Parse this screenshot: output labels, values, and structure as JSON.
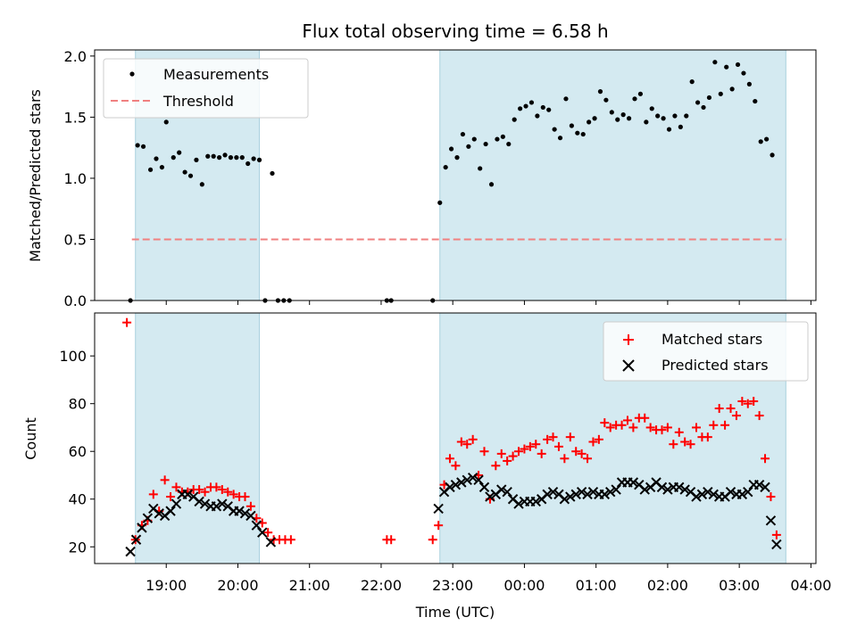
{
  "chart_data": {
    "title": "Flux total observing time = 6.58 h",
    "xlabel": "Time (UTC)",
    "x_ticks": [
      "19:00",
      "20:00",
      "21:00",
      "22:00",
      "23:00",
      "00:00",
      "01:00",
      "02:00",
      "03:00",
      "04:00"
    ],
    "shaded_intervals": [
      [
        18.57,
        20.3
      ],
      [
        22.82,
        27.65
      ]
    ],
    "shade_color": "#d4eaf1",
    "top": {
      "type": "scatter",
      "ylabel": "Matched/Predicted stars",
      "ylim": [
        0,
        2.05
      ],
      "y_ticks": [
        "0.0",
        "0.5",
        "1.0",
        "1.5",
        "2.0"
      ],
      "threshold": {
        "name": "Threshold",
        "value": 0.5,
        "x_range": [
          18.52,
          27.65
        ],
        "color": "#f08080"
      },
      "series": [
        {
          "name": "Measurements",
          "color": "#000000",
          "points": [
            [
              18.5,
              0.0
            ],
            [
              18.6,
              1.27
            ],
            [
              18.68,
              1.26
            ],
            [
              18.78,
              1.07
            ],
            [
              18.86,
              1.16
            ],
            [
              18.94,
              1.09
            ],
            [
              19.0,
              1.46
            ],
            [
              19.1,
              1.17
            ],
            [
              19.18,
              1.21
            ],
            [
              19.26,
              1.05
            ],
            [
              19.34,
              1.02
            ],
            [
              19.42,
              1.15
            ],
            [
              19.5,
              0.95
            ],
            [
              19.58,
              1.18
            ],
            [
              19.66,
              1.18
            ],
            [
              19.74,
              1.17
            ],
            [
              19.82,
              1.19
            ],
            [
              19.9,
              1.17
            ],
            [
              19.98,
              1.17
            ],
            [
              20.06,
              1.17
            ],
            [
              20.14,
              1.12
            ],
            [
              20.22,
              1.16
            ],
            [
              20.3,
              1.15
            ],
            [
              20.38,
              0.0
            ],
            [
              20.48,
              1.04
            ],
            [
              20.56,
              0.0
            ],
            [
              20.64,
              0.0
            ],
            [
              20.72,
              0.0
            ],
            [
              22.08,
              0.0
            ],
            [
              22.14,
              0.0
            ],
            [
              22.72,
              0.0
            ],
            [
              22.82,
              0.8
            ],
            [
              22.9,
              1.09
            ],
            [
              22.98,
              1.24
            ],
            [
              23.06,
              1.17
            ],
            [
              23.14,
              1.36
            ],
            [
              23.22,
              1.26
            ],
            [
              23.3,
              1.32
            ],
            [
              23.38,
              1.08
            ],
            [
              23.46,
              1.28
            ],
            [
              23.54,
              0.95
            ],
            [
              23.62,
              1.32
            ],
            [
              23.7,
              1.34
            ],
            [
              23.78,
              1.28
            ],
            [
              23.86,
              1.48
            ],
            [
              23.94,
              1.57
            ],
            [
              24.02,
              1.59
            ],
            [
              24.1,
              1.62
            ],
            [
              24.18,
              1.51
            ],
            [
              24.26,
              1.58
            ],
            [
              24.34,
              1.56
            ],
            [
              24.42,
              1.4
            ],
            [
              24.5,
              1.33
            ],
            [
              24.58,
              1.65
            ],
            [
              24.66,
              1.43
            ],
            [
              24.74,
              1.37
            ],
            [
              24.82,
              1.36
            ],
            [
              24.9,
              1.46
            ],
            [
              24.98,
              1.49
            ],
            [
              25.06,
              1.71
            ],
            [
              25.14,
              1.64
            ],
            [
              25.22,
              1.54
            ],
            [
              25.3,
              1.48
            ],
            [
              25.38,
              1.52
            ],
            [
              25.46,
              1.49
            ],
            [
              25.54,
              1.65
            ],
            [
              25.62,
              1.69
            ],
            [
              25.7,
              1.46
            ],
            [
              25.78,
              1.57
            ],
            [
              25.86,
              1.51
            ],
            [
              25.94,
              1.49
            ],
            [
              26.02,
              1.4
            ],
            [
              26.1,
              1.51
            ],
            [
              26.18,
              1.42
            ],
            [
              26.26,
              1.51
            ],
            [
              26.34,
              1.79
            ],
            [
              26.42,
              1.62
            ],
            [
              26.5,
              1.58
            ],
            [
              26.58,
              1.66
            ],
            [
              26.66,
              1.95
            ],
            [
              26.74,
              1.69
            ],
            [
              26.82,
              1.91
            ],
            [
              26.9,
              1.73
            ],
            [
              26.98,
              1.93
            ],
            [
              27.06,
              1.86
            ],
            [
              27.14,
              1.77
            ],
            [
              27.22,
              1.63
            ],
            [
              27.3,
              1.3
            ],
            [
              27.38,
              1.32
            ],
            [
              27.46,
              1.19
            ]
          ]
        }
      ]
    },
    "bottom": {
      "type": "scatter",
      "ylabel": "Count",
      "ylim": [
        13,
        118
      ],
      "y_ticks": [
        "20",
        "40",
        "60",
        "80",
        "100"
      ],
      "series": [
        {
          "name": "Matched stars",
          "marker": "+",
          "color": "#ff0000",
          "points": [
            [
              18.45,
              114
            ],
            [
              18.57,
              23
            ],
            [
              18.66,
              29
            ],
            [
              18.74,
              31
            ],
            [
              18.82,
              42
            ],
            [
              18.9,
              35
            ],
            [
              18.98,
              48
            ],
            [
              19.06,
              41
            ],
            [
              19.14,
              45
            ],
            [
              19.22,
              43
            ],
            [
              19.3,
              43
            ],
            [
              19.38,
              44
            ],
            [
              19.46,
              44
            ],
            [
              19.54,
              43
            ],
            [
              19.62,
              45
            ],
            [
              19.7,
              45
            ],
            [
              19.78,
              44
            ],
            [
              19.86,
              43
            ],
            [
              19.94,
              42
            ],
            [
              20.02,
              41
            ],
            [
              20.1,
              41
            ],
            [
              20.18,
              37
            ],
            [
              20.26,
              32
            ],
            [
              20.34,
              30
            ],
            [
              20.42,
              26
            ],
            [
              20.5,
              23
            ],
            [
              20.58,
              23
            ],
            [
              20.66,
              23
            ],
            [
              20.74,
              23
            ],
            [
              22.08,
              23
            ],
            [
              22.14,
              23
            ],
            [
              22.72,
              23
            ],
            [
              22.8,
              29
            ],
            [
              22.88,
              46
            ],
            [
              22.96,
              57
            ],
            [
              23.04,
              54
            ],
            [
              23.12,
              64
            ],
            [
              23.2,
              63
            ],
            [
              23.28,
              65
            ],
            [
              23.36,
              50
            ],
            [
              23.44,
              60
            ],
            [
              23.52,
              40
            ],
            [
              23.6,
              54
            ],
            [
              23.68,
              59
            ],
            [
              23.76,
              56
            ],
            [
              23.84,
              58
            ],
            [
              23.92,
              60
            ],
            [
              24.0,
              61
            ],
            [
              24.08,
              62
            ],
            [
              24.16,
              63
            ],
            [
              24.24,
              59
            ],
            [
              24.32,
              65
            ],
            [
              24.4,
              66
            ],
            [
              24.48,
              62
            ],
            [
              24.56,
              57
            ],
            [
              24.64,
              66
            ],
            [
              24.72,
              60
            ],
            [
              24.8,
              59
            ],
            [
              24.88,
              57
            ],
            [
              24.96,
              64
            ],
            [
              25.04,
              65
            ],
            [
              25.12,
              72
            ],
            [
              25.2,
              70
            ],
            [
              25.28,
              71
            ],
            [
              25.36,
              71
            ],
            [
              25.44,
              73
            ],
            [
              25.52,
              70
            ],
            [
              25.6,
              74
            ],
            [
              25.68,
              74
            ],
            [
              25.76,
              70
            ],
            [
              25.84,
              69
            ],
            [
              25.92,
              69
            ],
            [
              26.0,
              70
            ],
            [
              26.08,
              63
            ],
            [
              26.16,
              68
            ],
            [
              26.24,
              64
            ],
            [
              26.32,
              63
            ],
            [
              26.4,
              70
            ],
            [
              26.48,
              66
            ],
            [
              26.56,
              66
            ],
            [
              26.64,
              71
            ],
            [
              26.72,
              78
            ],
            [
              26.8,
              71
            ],
            [
              26.88,
              78
            ],
            [
              26.96,
              75
            ],
            [
              27.04,
              81
            ],
            [
              27.12,
              80
            ],
            [
              27.2,
              81
            ],
            [
              27.28,
              75
            ],
            [
              27.36,
              57
            ],
            [
              27.44,
              41
            ],
            [
              27.52,
              25
            ]
          ]
        },
        {
          "name": "Predicted stars",
          "marker": "x",
          "color": "#000000",
          "points": [
            [
              18.5,
              18
            ],
            [
              18.58,
              23
            ],
            [
              18.66,
              28
            ],
            [
              18.74,
              32
            ],
            [
              18.82,
              36
            ],
            [
              18.9,
              34
            ],
            [
              18.98,
              33
            ],
            [
              19.06,
              35
            ],
            [
              19.14,
              38
            ],
            [
              19.22,
              42
            ],
            [
              19.3,
              42
            ],
            [
              19.38,
              41
            ],
            [
              19.46,
              39
            ],
            [
              19.54,
              38
            ],
            [
              19.62,
              37
            ],
            [
              19.7,
              37
            ],
            [
              19.78,
              38
            ],
            [
              19.86,
              37
            ],
            [
              19.94,
              35
            ],
            [
              20.02,
              35
            ],
            [
              20.1,
              34
            ],
            [
              20.18,
              33
            ],
            [
              20.26,
              29
            ],
            [
              20.34,
              26
            ],
            [
              20.46,
              22
            ],
            [
              22.8,
              36
            ],
            [
              22.88,
              43
            ],
            [
              22.96,
              45
            ],
            [
              23.04,
              46
            ],
            [
              23.12,
              47
            ],
            [
              23.2,
              48
            ],
            [
              23.28,
              49
            ],
            [
              23.36,
              48
            ],
            [
              23.44,
              45
            ],
            [
              23.52,
              41
            ],
            [
              23.6,
              42
            ],
            [
              23.68,
              44
            ],
            [
              23.76,
              43
            ],
            [
              23.84,
              40
            ],
            [
              23.92,
              38
            ],
            [
              24.0,
              39
            ],
            [
              24.08,
              39
            ],
            [
              24.16,
              39
            ],
            [
              24.24,
              40
            ],
            [
              24.32,
              42
            ],
            [
              24.4,
              43
            ],
            [
              24.48,
              42
            ],
            [
              24.56,
              40
            ],
            [
              24.64,
              41
            ],
            [
              24.72,
              42
            ],
            [
              24.8,
              43
            ],
            [
              24.88,
              42
            ],
            [
              24.96,
              43
            ],
            [
              25.04,
              42
            ],
            [
              25.12,
              42
            ],
            [
              25.2,
              43
            ],
            [
              25.28,
              44
            ],
            [
              25.36,
              47
            ],
            [
              25.44,
              47
            ],
            [
              25.52,
              47
            ],
            [
              25.6,
              46
            ],
            [
              25.68,
              44
            ],
            [
              25.76,
              45
            ],
            [
              25.84,
              47
            ],
            [
              25.92,
              45
            ],
            [
              26.0,
              44
            ],
            [
              26.08,
              45
            ],
            [
              26.16,
              45
            ],
            [
              26.24,
              44
            ],
            [
              26.32,
              43
            ],
            [
              26.4,
              41
            ],
            [
              26.48,
              42
            ],
            [
              26.56,
              43
            ],
            [
              26.64,
              42
            ],
            [
              26.72,
              41
            ],
            [
              26.8,
              41
            ],
            [
              26.88,
              43
            ],
            [
              26.96,
              42
            ],
            [
              27.04,
              42
            ],
            [
              27.12,
              43
            ],
            [
              27.2,
              46
            ],
            [
              27.28,
              46
            ],
            [
              27.36,
              45
            ],
            [
              27.44,
              31
            ],
            [
              27.52,
              21
            ]
          ]
        }
      ]
    }
  }
}
